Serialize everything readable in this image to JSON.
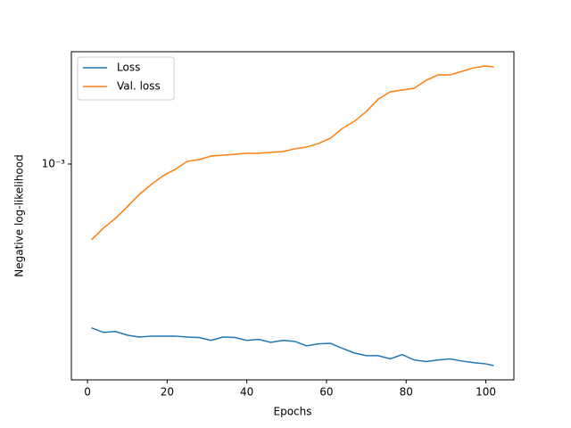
{
  "chart_data": {
    "type": "line",
    "log_y": true,
    "legend": "upper left",
    "x_label": "Epochs",
    "y_label": "Negative log-likelihood",
    "x": [
      1,
      4,
      7,
      10,
      13,
      16,
      19,
      22,
      25,
      28,
      31,
      34,
      37,
      40,
      43,
      46,
      49,
      52,
      55,
      58,
      61,
      64,
      67,
      70,
      73,
      76,
      79,
      82,
      85,
      88,
      91,
      94,
      97,
      100,
      102
    ],
    "series": [
      {
        "name": "Loss",
        "color": "#1f77b4",
        "values": [
          0.000347,
          0.000337,
          0.000339,
          0.000331,
          0.000327,
          0.000329,
          0.000329,
          0.000329,
          0.000327,
          0.000326,
          0.00032,
          0.000327,
          0.000326,
          0.00032,
          0.000322,
          0.000316,
          0.00032,
          0.000318,
          0.000309,
          0.000313,
          0.000314,
          0.000304,
          0.000295,
          0.00029,
          0.00029,
          0.000284,
          0.000292,
          0.000282,
          0.000279,
          0.000282,
          0.000284,
          0.00028,
          0.000277,
          0.000275,
          0.000272
        ]
      },
      {
        "name": "Val. loss",
        "color": "#ff7f0e",
        "values": [
          0.000613,
          0.000661,
          0.000704,
          0.000759,
          0.000822,
          0.000876,
          0.000928,
          0.000966,
          0.001017,
          0.001029,
          0.001053,
          0.001059,
          0.001065,
          0.001072,
          0.001072,
          0.001078,
          0.001084,
          0.001103,
          0.001116,
          0.001142,
          0.001182,
          0.001259,
          0.001318,
          0.001404,
          0.001522,
          0.001594,
          0.001613,
          0.001631,
          0.001718,
          0.001778,
          0.001778,
          0.00182,
          0.001862,
          0.001884,
          0.001873
        ]
      }
    ],
    "xlim": [
      -4.05,
      107.05
    ],
    "xticks": [
      0,
      20,
      40,
      60,
      80,
      100
    ],
    "ylim": [
      0.000248,
      0.002066
    ],
    "yticks": [
      {
        "value": 0.001,
        "label": "10⁻³"
      }
    ]
  }
}
